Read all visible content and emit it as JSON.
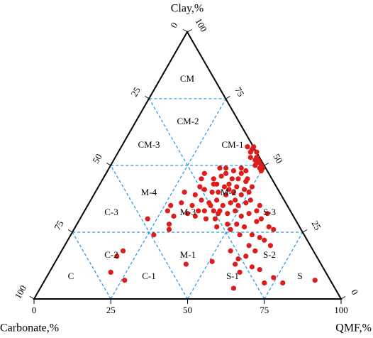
{
  "chart_data": {
    "type": "ternary",
    "top_label": "Clay,%",
    "left_label": "Carbonate,%",
    "right_label": "QMF,%",
    "lim": [
      0,
      100
    ],
    "clay_ticks": [
      0,
      25,
      50,
      75,
      100
    ],
    "carbonate_ticks": [
      0,
      25,
      50,
      75,
      100
    ],
    "qmf_ticks": [
      0,
      25,
      50,
      75,
      100
    ],
    "grid": true,
    "grid_color": "#2e9ae0",
    "regions": [
      "CM",
      "CM-2",
      "CM-3",
      "CM-1",
      "M-4",
      "M-2",
      "M-3",
      "S-3",
      "C-3",
      "C-2",
      "M-1",
      "S-2",
      "C",
      "C-1",
      "S-1",
      "S"
    ],
    "series": [
      {
        "color": "#dd1c1c",
        "clay": [
          57,
          56,
          55,
          53,
          52,
          51,
          50,
          49,
          52,
          51,
          49,
          50,
          53,
          55,
          57,
          57,
          48,
          47,
          45,
          46,
          47,
          45,
          48,
          45,
          47,
          44,
          45,
          43,
          42,
          43,
          42,
          41,
          42,
          42,
          41,
          40,
          40,
          39,
          40,
          39,
          40,
          39,
          37,
          36,
          37,
          35,
          36,
          35,
          36,
          37,
          35,
          33,
          33,
          33,
          32,
          32,
          33,
          31,
          32,
          33,
          35,
          40,
          36,
          32,
          31,
          30,
          30,
          28,
          28,
          27,
          29,
          30,
          32,
          27,
          26,
          35,
          33,
          31,
          28,
          26,
          30,
          27,
          26,
          24,
          24,
          23,
          22,
          20,
          20,
          18,
          16,
          15,
          18,
          13,
          12,
          11,
          10,
          6,
          4,
          6,
          8,
          7,
          14,
          13,
          18,
          16,
          10,
          7,
          24,
          43,
          49,
          49,
          49,
          48,
          35,
          33,
          41,
          37,
          45
        ],
        "qmf": [
          41,
          43,
          45,
          46,
          47,
          48,
          49,
          50,
          46,
          47,
          49,
          47,
          44,
          43,
          41,
          43,
          50,
          32,
          36,
          38,
          39,
          42,
          41,
          44,
          44,
          47,
          47,
          38,
          41,
          42,
          45,
          48,
          50,
          33,
          35,
          38,
          40,
          43,
          45,
          48,
          50,
          33,
          36,
          39,
          41,
          44,
          46,
          49,
          51,
          52,
          34,
          37,
          39,
          42,
          44,
          47,
          49,
          52,
          54,
          56,
          56,
          29,
          30,
          34,
          37,
          41,
          44,
          49,
          52,
          55,
          58,
          59,
          60,
          63,
          65,
          27,
          27,
          30,
          30,
          31,
          22,
          46,
          51,
          55,
          59,
          62,
          64,
          67,
          60,
          63,
          61,
          59,
          55,
          59,
          65,
          68,
          62,
          72,
          63,
          78,
          74,
          88,
          51,
          43,
          20,
          19,
          20,
          26,
          27,
          37,
          36,
          38,
          43,
          45,
          40,
          44,
          43,
          47,
          32
        ],
        "carbonate": [
          2,
          1,
          0,
          1,
          1,
          1,
          1,
          1,
          2,
          2,
          2,
          3,
          3,
          2,
          2,
          0,
          2,
          21,
          19,
          16,
          14,
          13,
          11,
          11,
          9,
          9,
          8,
          19,
          17,
          15,
          13,
          11,
          8,
          25,
          24,
          22,
          20,
          18,
          15,
          13,
          10,
          28,
          27,
          25,
          22,
          21,
          18,
          16,
          13,
          11,
          31,
          30,
          28,
          25,
          24,
          21,
          18,
          17,
          14,
          11,
          9,
          31,
          34,
          34,
          32,
          29,
          26,
          23,
          20,
          18,
          13,
          11,
          8,
          10,
          9,
          38,
          40,
          39,
          42,
          43,
          48,
          27,
          23,
          21,
          17,
          15,
          14,
          13,
          20,
          19,
          23,
          26,
          27,
          28,
          23,
          21,
          28,
          22,
          33,
          16,
          18,
          5,
          35,
          44,
          62,
          65,
          70,
          67,
          49,
          20,
          15,
          13,
          8,
          7,
          25,
          23,
          16,
          16,
          23
        ]
      }
    ]
  }
}
